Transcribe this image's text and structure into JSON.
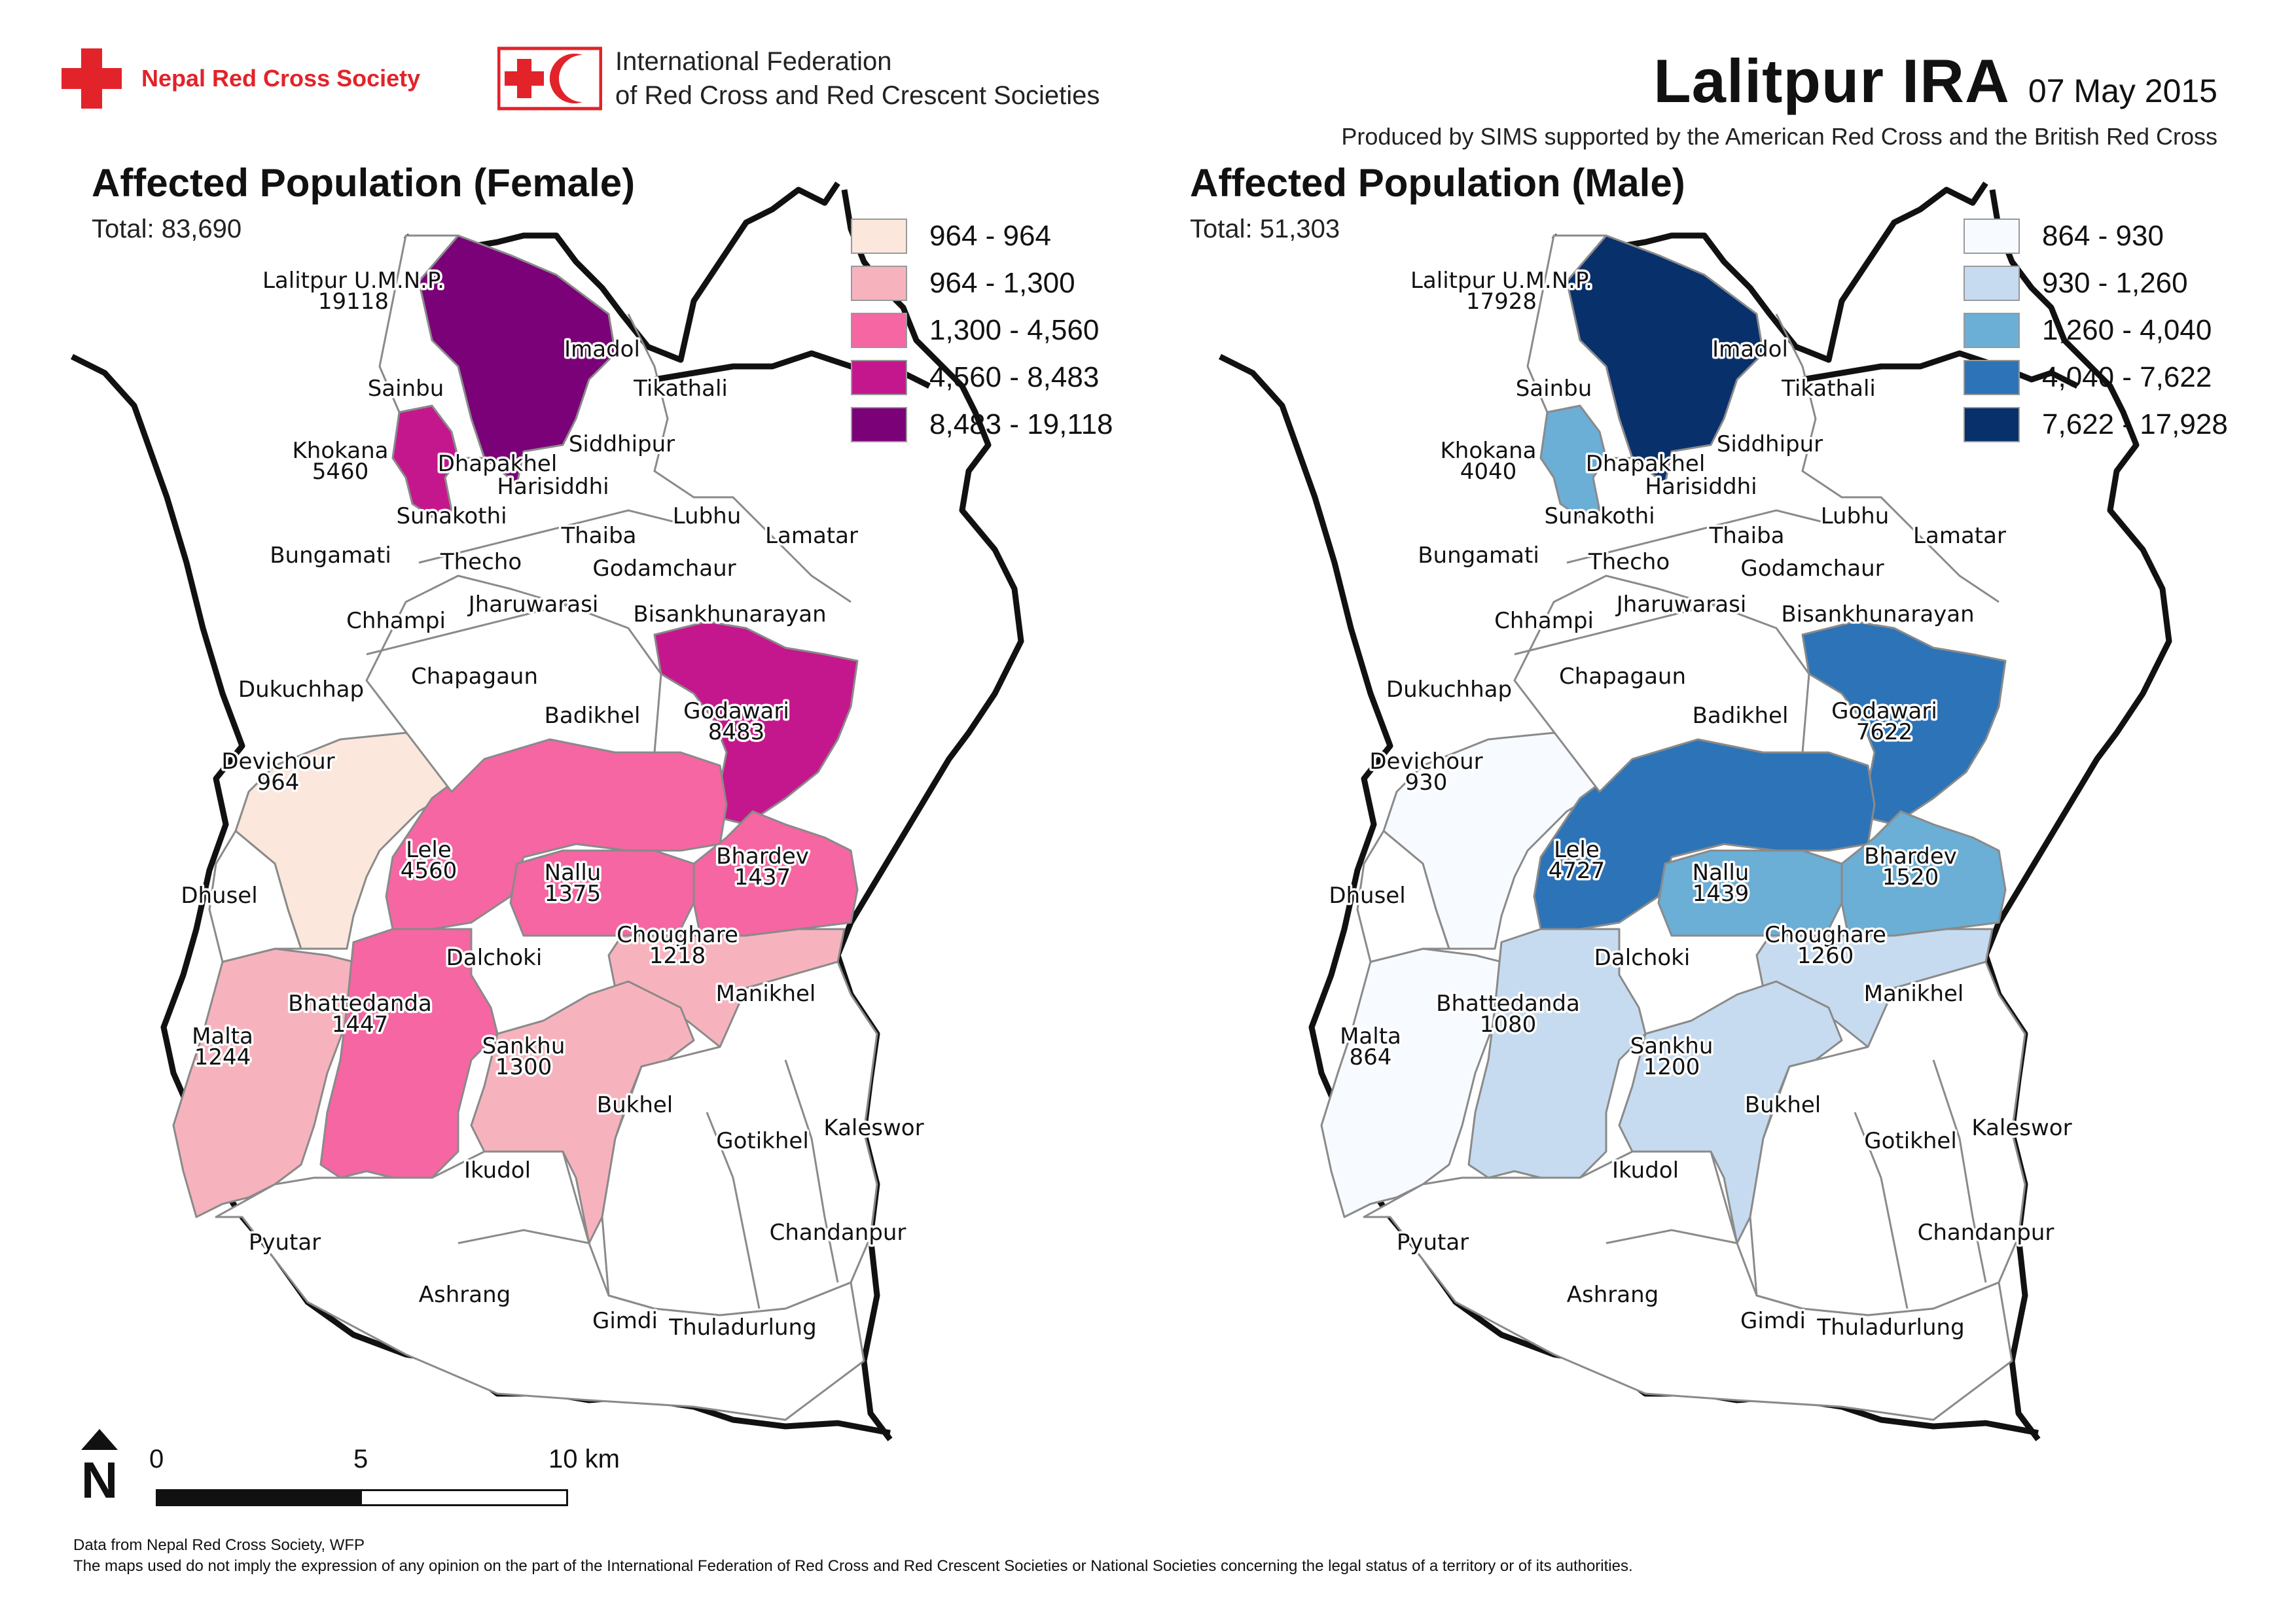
{
  "header": {
    "org1_name": "Nepal Red Cross Society",
    "org2_line1": "International Federation",
    "org2_line2": "of Red Cross and Red Crescent Societies",
    "title": "Lalitpur IRA",
    "date": "07 May 2015",
    "credit": "Produced by SIMS supported by the American Red Cross and the British Red Cross"
  },
  "colors": {
    "redcross": "#e2232a",
    "female": [
      "#fbe7dc",
      "#f7b3bd",
      "#f566a2",
      "#c5178d",
      "#7a0177"
    ],
    "male": [
      "#f7fbff",
      "#c6dbef",
      "#6baed6",
      "#2c74b7",
      "#08306b"
    ]
  },
  "female": {
    "title": "Affected Population (Female)",
    "total": "Total: 83,690",
    "legend": [
      "964 - 964",
      "964 - 1,300",
      "1,300 - 4,560",
      "4,560 - 8,483",
      "8,483 - 19,118"
    ],
    "values": {
      "lalitpur": "19118",
      "khokana": "5460",
      "godawari": "8483",
      "devichour": "964",
      "lele": "4560",
      "nallu": "1375",
      "bhardev": "1437",
      "choughare": "1218",
      "malta": "1244",
      "bhattedanda": "1447",
      "sankhu": "1300"
    }
  },
  "male": {
    "title": "Affected Population (Male)",
    "total": "Total: 51,303",
    "legend": [
      "864 - 930",
      "930 - 1,260",
      "1,260 - 4,040",
      "4,040 - 7,622",
      "7,622 - 17,928"
    ],
    "values": {
      "lalitpur": "17928",
      "khokana": "4040",
      "godawari": "7622",
      "devichour": "930",
      "lele": "4727",
      "nallu": "1439",
      "bhardev": "1520",
      "choughare": "1260",
      "malta": "864",
      "bhattedanda": "1080",
      "sankhu": "1200"
    }
  },
  "places": {
    "lalitpur": "Lalitpur U.M.N.P.",
    "imadol": "Imadol",
    "tikathali": "Tikathali",
    "sainbu": "Sainbu",
    "khokana": "Khokana",
    "siddhipur": "Siddhipur",
    "dhapakhel": "Dhapakhel",
    "harisiddhi": "Harisiddhi",
    "sunakothi": "Sunakothi",
    "lubhu": "Lubhu",
    "lamatar": "Lamatar",
    "bungamati": "Bungamati",
    "thecho": "Thecho",
    "thaiba": "Thaiba",
    "godamchaur": "Godamchaur",
    "jharuwarasi": "Jharuwarasi",
    "chhampi": "Chhampi",
    "bisankhunarayan": "Bisankhunarayan",
    "dukuchhap": "Dukuchhap",
    "chapagaun": "Chapagaun",
    "badikhel": "Badikhel",
    "godawari": "Godawari",
    "devichour": "Devichour",
    "lele": "Lele",
    "nallu": "Nallu",
    "bhardev": "Bhardev",
    "dhusel": "Dhusel",
    "choughare": "Choughare",
    "dalchoki": "Dalchoki",
    "manikhel": "Manikhel",
    "malta": "Malta",
    "bhattedanda": "Bhattedanda",
    "sankhu": "Sankhu",
    "bukhel": "Bukhel",
    "gotikhel": "Gotikhel",
    "kaleswor": "Kaleswor",
    "ikudol": "Ikudol",
    "chandanpur": "Chandanpur",
    "pyutar": "Pyutar",
    "ashrang": "Ashrang",
    "gimdi": "Gimdi",
    "thuladurlung": "Thuladurlung"
  },
  "scale": {
    "t0": "0",
    "t5": "5",
    "t10": "10 km",
    "north": "N"
  },
  "footer": {
    "line1": "Data from Nepal Red Cross Society, WFP",
    "line2": "The maps used do not imply the expression of any opinion on the part of the International Federation of Red Cross and Red Crescent Societies or National Societies concerning the legal status of a territory or of its authorities."
  }
}
